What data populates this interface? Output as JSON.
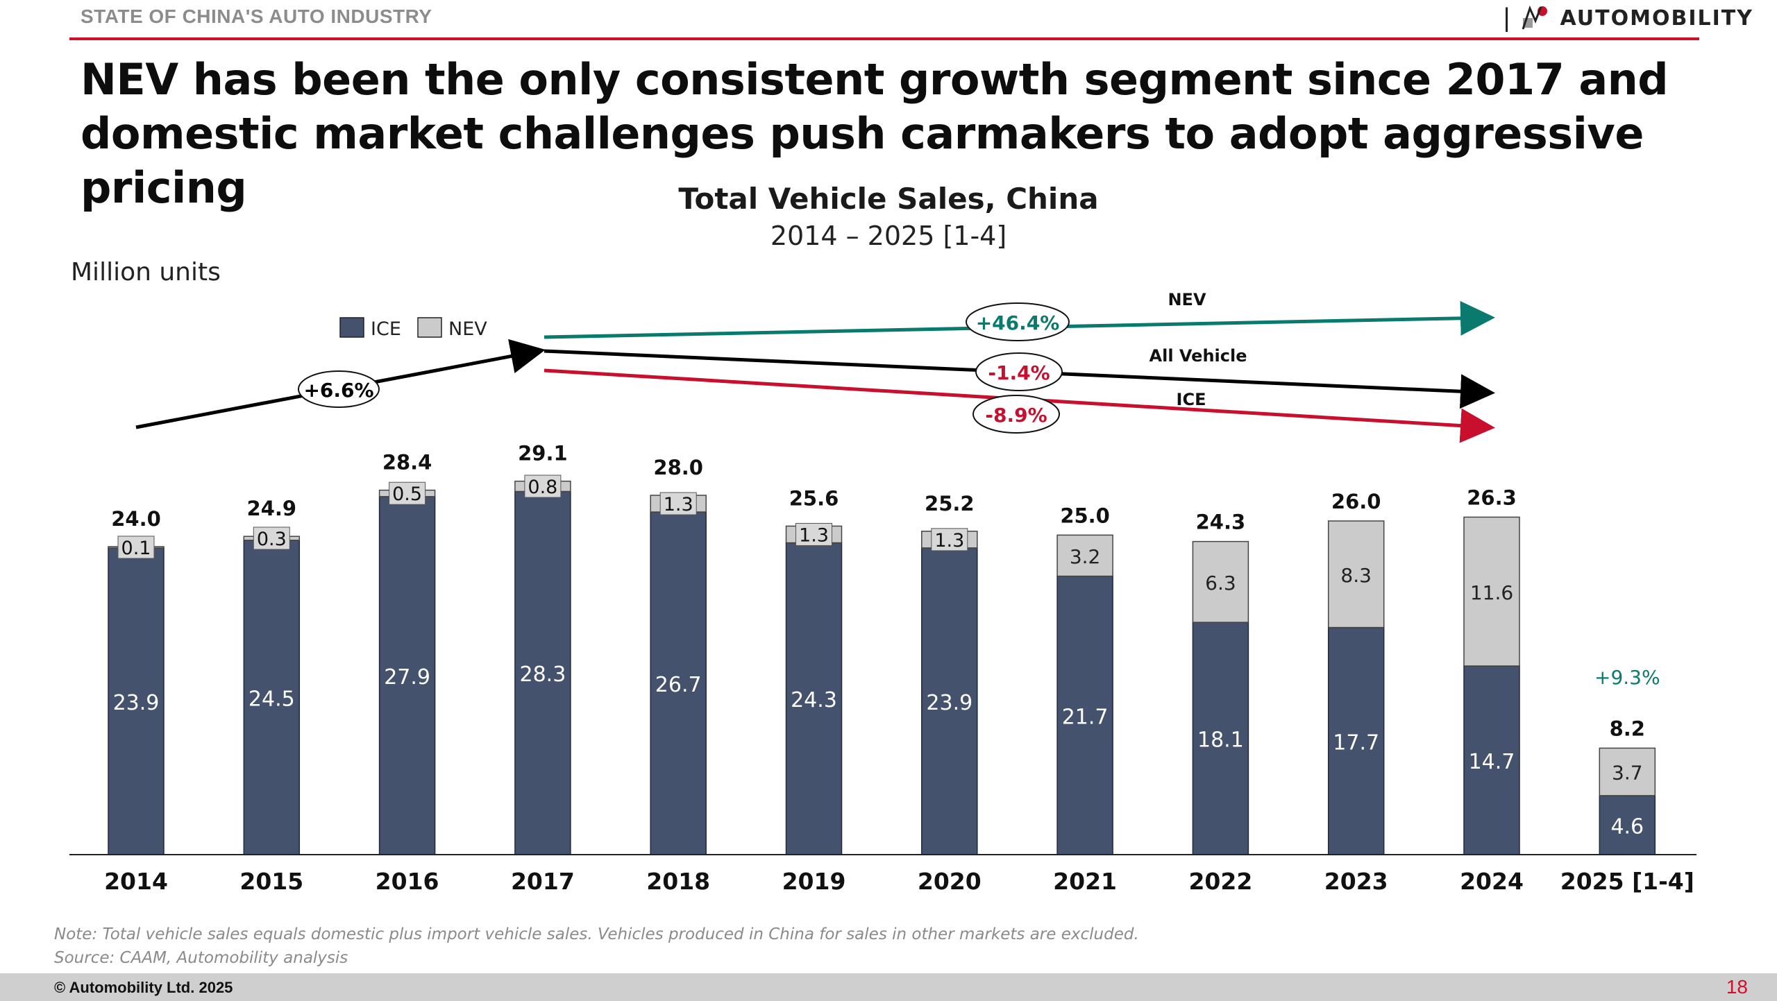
{
  "header": {
    "section_label": "STATE OF CHINA'S AUTO INDUSTRY",
    "brand_name": "AUTOMOBILITY",
    "brand_icon": "automobility-logo-icon"
  },
  "headline": "NEV has been the only consistent growth segment since 2017 and domestic market challenges push carmakers to adopt aggressive pricing",
  "footer": {
    "note": "Note: Total vehicle sales equals domestic plus import vehicle sales. Vehicles produced in China for sales in other markets are excluded.",
    "source": "Source: CAAM, Automobility analysis",
    "copyright": "© Automobility Ltd. 2025",
    "page_number": "18"
  },
  "chart_data": {
    "type": "bar",
    "stacked": true,
    "title": "Total Vehicle Sales, China",
    "subtitle": "2014 – 2025 [1-4]",
    "ylabel": "Million units",
    "ylim": [
      0,
      30
    ],
    "grid": false,
    "legend_position": "top-left",
    "categories": [
      "2014",
      "2015",
      "2016",
      "2017",
      "2018",
      "2019",
      "2020",
      "2021",
      "2022",
      "2023",
      "2024",
      "2025 [1-4]"
    ],
    "series": [
      {
        "name": "ICE",
        "color": "#45526e",
        "values": [
          23.9,
          24.5,
          27.9,
          28.3,
          26.7,
          24.3,
          23.9,
          21.7,
          18.1,
          17.7,
          14.7,
          4.6
        ]
      },
      {
        "name": "NEV",
        "color": "#cbcbcb",
        "values": [
          0.1,
          0.3,
          0.5,
          0.8,
          1.3,
          1.3,
          1.3,
          3.2,
          6.3,
          8.3,
          11.6,
          3.7
        ]
      }
    ],
    "totals": [
      "24.0",
      "24.9",
      "28.4",
      "29.1",
      "28.0",
      "25.6",
      "25.2",
      "25.0",
      "24.3",
      "26.0",
      "26.3",
      "8.2"
    ],
    "ice_labels": [
      "23.9",
      "24.5",
      "27.9",
      "28.3",
      "26.7",
      "24.3",
      "23.9",
      "21.7",
      "18.1",
      "17.7",
      "14.7",
      "4.6"
    ],
    "nev_labels": [
      "0.1",
      "0.3",
      "0.5",
      "0.8",
      "1.3",
      "1.3",
      "1.3",
      "3.2",
      "6.3",
      "8.3",
      "11.6",
      "3.7"
    ],
    "annotations": {
      "growth_2014_2017": {
        "label": "+6.6%",
        "color": "#000000"
      },
      "nev_cagr": {
        "name": "NEV",
        "label": "+46.4%",
        "color": "#0b7a6e"
      },
      "all_vehicle_cagr": {
        "name": "All Vehicle",
        "label": "-1.4%",
        "color": "#c8102e"
      },
      "ice_cagr": {
        "name": "ICE",
        "label": "-8.9%",
        "color": "#c8102e"
      },
      "ytd_growth": {
        "label": "+9.3%",
        "color": "#0b7a6e"
      }
    }
  }
}
